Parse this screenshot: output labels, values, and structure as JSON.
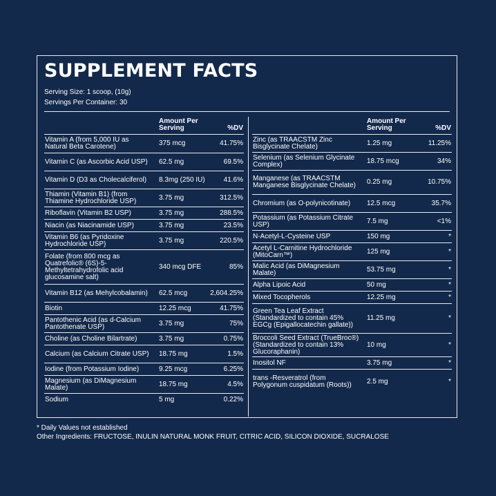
{
  "title": "SUPPLEMENT FACTS",
  "serving_size": "Serving Size: 1 scoop, (10g)",
  "servings_per_container": "Servings Per Container: 30",
  "header": {
    "amount_line1": "Amount Per",
    "amount_line2": "Serving",
    "dv": "%DV"
  },
  "left": [
    {
      "name": "Vitamin A (from 5,000 IU as Natural Beta Carotene)",
      "amount": "375 mcg",
      "dv": "41.75%"
    },
    {
      "name": "Vitamin C (as Ascorbic Acid USP)",
      "amount": "62.5 mg",
      "dv": "69.5%"
    },
    {
      "name": "Vitamin D (D3 as Cholecalciferol)",
      "amount": "8.3mg (250 IU)",
      "dv": "41.6%"
    },
    {
      "name": "Thiamin (Vitamin B1) (from Thiamine Hydrochloride USP)",
      "amount": "3.75 mg",
      "dv": "312.5%"
    },
    {
      "name": "Riboflavin (Vitamin B2 USP)",
      "amount": "3.75 mg",
      "dv": "288.5%"
    },
    {
      "name": "Niacin (as Niacinamide USP)",
      "amount": "3.75 mg",
      "dv": "23.5%"
    },
    {
      "name": "Vitamin B6 (as Pyridoxine Hydrochloride USP)",
      "amount": "3.75 mg",
      "dv": "220.5%"
    },
    {
      "name": "Folate (from 800 mcg as Quatrefolic® (6S)-5-Methyltetrahydrofolic acid glucosamine salt)",
      "amount": "340 mcg DFE",
      "dv": "85%"
    },
    {
      "name": "Vitamin B12 (as Mehylcobalamin)",
      "amount": "62.5 mcg",
      "dv": "2,604.25%"
    },
    {
      "name": "Biotin",
      "amount": "12.25 mcg",
      "dv": "41.75%"
    },
    {
      "name": "Pantothenic Acid (as d-Calcium Pantothenate USP)",
      "amount": "3.75 mg",
      "dv": "75%"
    },
    {
      "name": "Choline (as Choline Bilartrate)",
      "amount": "3.75 mg",
      "dv": "0.75%"
    },
    {
      "name": "Calcium (as Calcium Citrate USP)",
      "amount": "18.75 mg",
      "dv": "1.5%"
    },
    {
      "name": "Iodine (from Potassium Iodine)",
      "amount": "9.25 mcg",
      "dv": "6.25%"
    },
    {
      "name": "Magnesium (as DiMagnesium Malate)",
      "amount": "18.75 mg",
      "dv": "4.5%"
    },
    {
      "name": "Sodium",
      "amount": "5 mg",
      "dv": "0.22%"
    }
  ],
  "right": [
    {
      "name": "Zinc (as TRAACSTM Zinc Bisglycinate Chelate)",
      "amount": "1.25 mg",
      "dv": "11.25%"
    },
    {
      "name": "Selenium (as Selenium Glycinate Complex)",
      "amount": "18.75 mcg",
      "dv": "34%"
    },
    {
      "name": "Manganese (as TRAACSTM Manganese Bisglycinate Chelate)",
      "amount": "0.25 mg",
      "dv": "10.75%"
    },
    {
      "name": "Chromium (as O-polynicotinate)",
      "amount": "12.5 mcg",
      "dv": "35.7%"
    },
    {
      "name": "Potassium (as Potassium Citrate USP)",
      "amount": "7.5 mg",
      "dv": "<1%"
    },
    {
      "name": "N-Acetyl-L-Cysteine USP",
      "amount": "150 mg",
      "dv": "*"
    },
    {
      "name": "Acetyl L-Carnitine Hydrochloride (MitoCarn™)",
      "amount": "125 mg",
      "dv": "*"
    },
    {
      "name": "Malic Acid (as DiMagnesium Malate)",
      "amount": "53.75 mg",
      "dv": "*"
    },
    {
      "name": "Alpha Lipoic Acid",
      "amount": "50 mg",
      "dv": "*"
    },
    {
      "name": "Mixed Tocopherols",
      "amount": "12.25 mg",
      "dv": "*"
    },
    {
      "name": "Green Tea Leaf Extract (Standardized to contain 45% EGCg (Epigallocatechin gallate))",
      "amount": "11.25 mg",
      "dv": "*"
    },
    {
      "name": "Broccoli Seed Extract (TrueBroc®) (Standardized to contain 13% Glucoraphanin)",
      "amount": "10 mg",
      "dv": "*"
    },
    {
      "name": "Inositol NF",
      "amount": "3.75 mg",
      "dv": "*"
    },
    {
      "name": "trans -Resveratrol (from Polygonum cuspidatum (Roots))",
      "amount": "2.5 mg",
      "dv": "*"
    }
  ],
  "footnote": "* Daily Values not established",
  "other_ingredients": "Other Ingredients: FRUCTOSE, INULIN NATURAL MONK FRUIT, CITRIC ACID, SILICON DIOXIDE, SUCRALOSE"
}
